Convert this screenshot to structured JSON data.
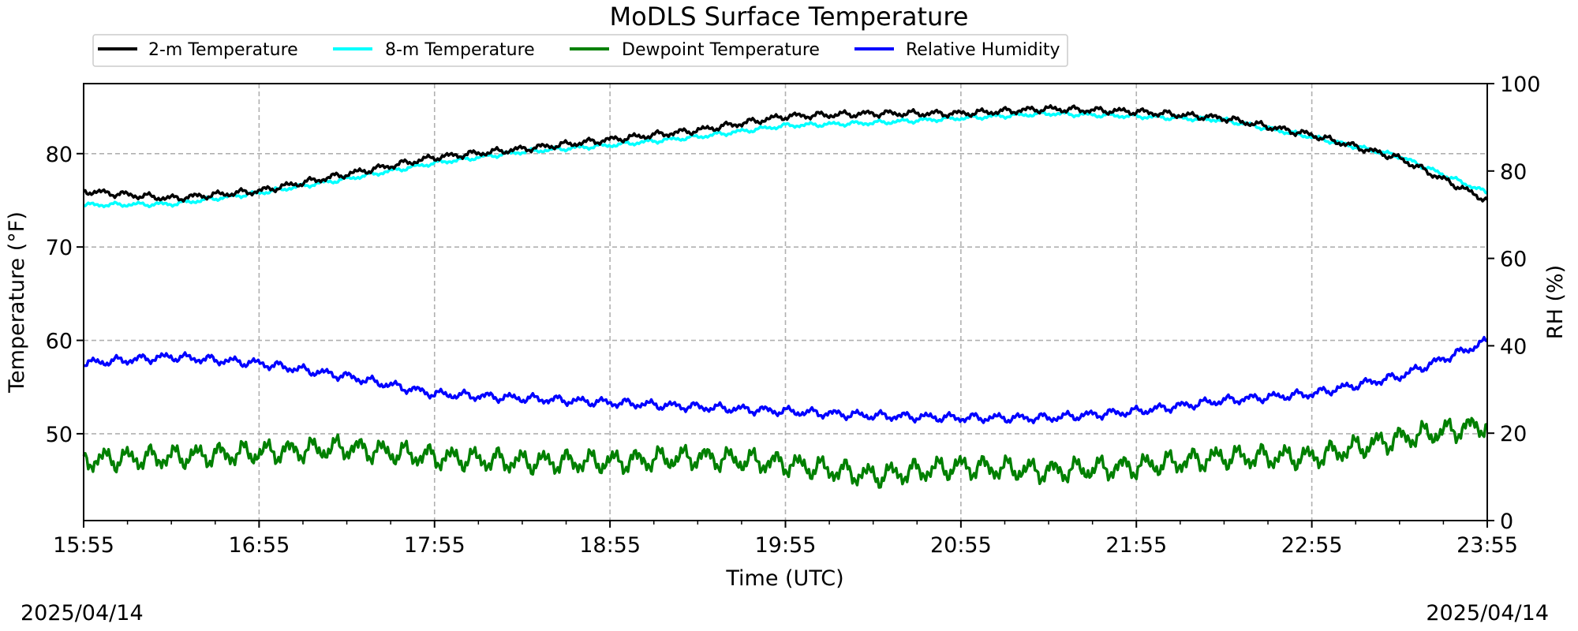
{
  "chart_data": {
    "type": "line",
    "title": "MoDLS Surface Temperature",
    "xlabel": "Time (UTC)",
    "ylabel": "Temperature (°F)",
    "y2label": "RH (%)",
    "x_ticks": [
      "15:55",
      "16:55",
      "17:55",
      "18:55",
      "19:55",
      "20:55",
      "21:55",
      "22:55",
      "23:55"
    ],
    "x_minor_per_major": 3,
    "y_ticks": [
      50,
      60,
      70,
      80
    ],
    "y2_ticks": [
      0,
      20,
      40,
      60,
      80,
      100
    ],
    "ylim": [
      40.7,
      87.5
    ],
    "y2lim": [
      0,
      100
    ],
    "grid": true,
    "legend_position": "top-left",
    "start_date": "2025/04/14",
    "end_date": "2025/04/14",
    "x_hours": [
      0,
      0.5,
      1,
      1.5,
      2,
      2.5,
      3,
      3.5,
      4,
      4.5,
      5,
      5.5,
      6,
      6.5,
      7,
      7.5,
      8
    ],
    "series": [
      {
        "name": "2-m Temperature",
        "axis": "left",
        "color": "#000000",
        "values": [
          76.0,
          75.2,
          76.0,
          77.8,
          79.6,
          80.5,
          81.5,
          82.5,
          84.0,
          84.3,
          84.3,
          84.8,
          84.5,
          83.8,
          82.0,
          79.5,
          75.0
        ]
      },
      {
        "name": "8-m Temperature",
        "axis": "left",
        "color": "#00ffff",
        "values": [
          74.5,
          74.6,
          75.8,
          77.3,
          79.0,
          80.2,
          80.9,
          81.8,
          83.0,
          83.3,
          83.8,
          84.3,
          84.0,
          83.6,
          81.8,
          79.7,
          75.8
        ]
      },
      {
        "name": "Dewpoint Temperature",
        "axis": "left",
        "color": "#008000",
        "values": [
          47.2,
          47.5,
          48.0,
          48.5,
          47.5,
          47.0,
          47.0,
          47.5,
          46.8,
          45.5,
          46.5,
          46.0,
          46.5,
          47.5,
          47.5,
          49.5,
          51.0
        ]
      },
      {
        "name": "Relative Humidity",
        "axis": "right",
        "color": "#0000ff",
        "values": [
          36,
          37.5,
          36,
          33,
          29,
          28,
          27,
          26,
          25,
          24,
          23.5,
          23.5,
          25,
          27.5,
          29,
          33,
          41
        ]
      }
    ]
  }
}
